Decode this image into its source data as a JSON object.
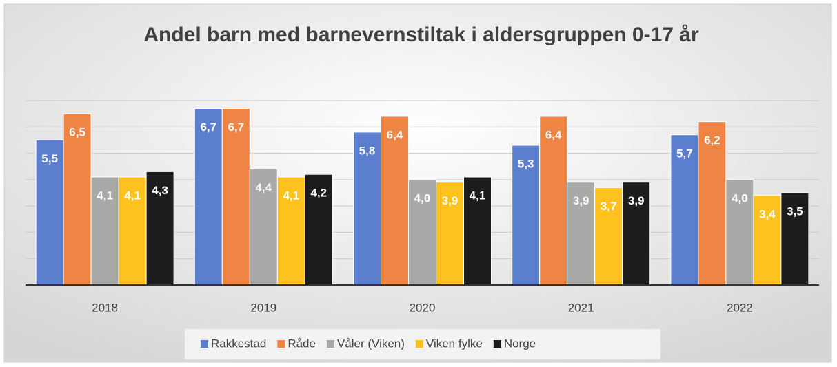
{
  "chart_data": {
    "type": "bar",
    "title": "Andel barn med barnevernstiltak i aldersgruppen 0-17 år",
    "categories": [
      "2018",
      "2019",
      "2020",
      "2021",
      "2022"
    ],
    "series": [
      {
        "name": "Rakkestad",
        "color": "#5b7fce",
        "values": [
          5.5,
          6.7,
          5.8,
          5.3,
          5.7
        ],
        "value_labels": [
          "5,5",
          "6,7",
          "5,8",
          "5,3",
          "5,7"
        ]
      },
      {
        "name": "Råde",
        "color": "#ee8544",
        "values": [
          6.5,
          6.7,
          6.4,
          6.4,
          6.2
        ],
        "value_labels": [
          "6,5",
          "6,7",
          "6,4",
          "6,4",
          "6,2"
        ]
      },
      {
        "name": "Våler (Viken)",
        "color": "#a9a9a9",
        "values": [
          4.1,
          4.4,
          4.0,
          3.9,
          4.0
        ],
        "value_labels": [
          "4,1",
          "4,4",
          "4,0",
          "3,9",
          "4,0"
        ]
      },
      {
        "name": "Viken fylke",
        "color": "#fdc21e",
        "values": [
          4.1,
          4.1,
          3.9,
          3.7,
          3.4
        ],
        "value_labels": [
          "4,1",
          "4,1",
          "3,9",
          "3,7",
          "3,4"
        ]
      },
      {
        "name": "Norge",
        "color": "#1c1c1c",
        "values": [
          4.3,
          4.2,
          4.1,
          3.9,
          3.5
        ],
        "value_labels": [
          "4,3",
          "4,2",
          "4,1",
          "3,9",
          "3,5"
        ]
      }
    ],
    "ylim": [
      0,
      7
    ],
    "yticks": [
      0,
      1,
      2,
      3,
      4,
      5,
      6,
      7
    ],
    "grid": true,
    "legend": "bottom"
  }
}
